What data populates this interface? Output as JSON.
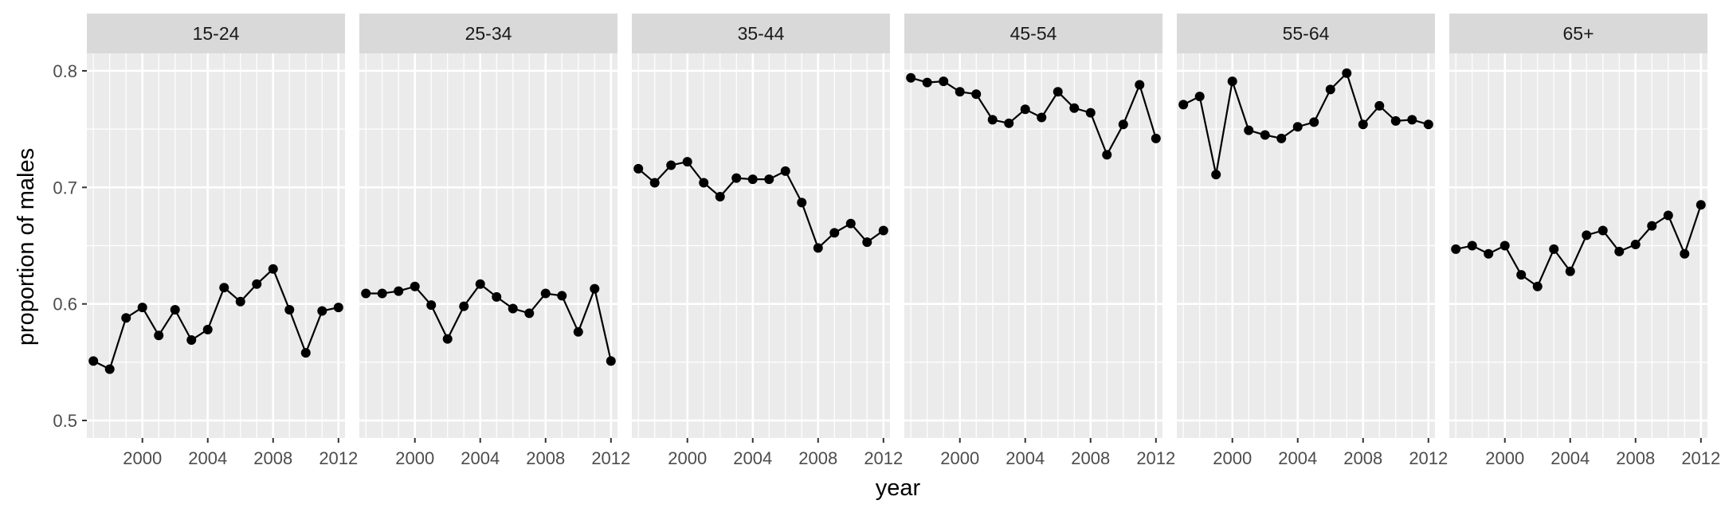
{
  "chart_data": {
    "type": "line",
    "xlabel": "year",
    "ylabel": "proportion of males",
    "ylim": [
      0.485,
      0.815
    ],
    "xlim": [
      1996.6,
      2012.4
    ],
    "x_ticks": [
      2000,
      2004,
      2008,
      2012
    ],
    "y_ticks": [
      0.5,
      0.6,
      0.7,
      0.8
    ],
    "y_tick_labels": [
      "0.5",
      "0.6",
      "0.7",
      "0.8"
    ],
    "x": [
      1997,
      1998,
      1999,
      2000,
      2001,
      2002,
      2003,
      2004,
      2005,
      2006,
      2007,
      2008,
      2009,
      2010,
      2011,
      2012
    ],
    "grid": true,
    "legend": "none",
    "colors": {
      "panel_bg": "#ebebeb",
      "strip_bg": "#d9d9d9",
      "grid": "#ffffff",
      "line": "#000000"
    },
    "panels": [
      {
        "name": "15-24",
        "values": [
          0.551,
          0.544,
          0.588,
          0.597,
          0.573,
          0.595,
          0.569,
          0.578,
          0.614,
          0.602,
          0.617,
          0.63,
          0.595,
          0.558,
          0.594,
          0.597
        ]
      },
      {
        "name": "25-34",
        "values": [
          0.609,
          0.609,
          0.611,
          0.615,
          0.599,
          0.57,
          0.598,
          0.617,
          0.606,
          0.596,
          0.592,
          0.609,
          0.607,
          0.576,
          0.613,
          0.551
        ]
      },
      {
        "name": "35-44",
        "values": [
          0.716,
          0.704,
          0.719,
          0.722,
          0.704,
          0.692,
          0.708,
          0.707,
          0.707,
          0.714,
          0.687,
          0.648,
          0.661,
          0.669,
          0.653,
          0.663
        ]
      },
      {
        "name": "45-54",
        "values": [
          0.794,
          0.79,
          0.791,
          0.782,
          0.78,
          0.758,
          0.755,
          0.767,
          0.76,
          0.782,
          0.768,
          0.764,
          0.728,
          0.754,
          0.788,
          0.742
        ]
      },
      {
        "name": "55-64",
        "values": [
          0.771,
          0.778,
          0.711,
          0.791,
          0.749,
          0.745,
          0.742,
          0.752,
          0.756,
          0.784,
          0.798,
          0.754,
          0.77,
          0.757,
          0.758,
          0.754
        ]
      },
      {
        "name": "65+",
        "values": [
          0.647,
          0.65,
          0.643,
          0.65,
          0.625,
          0.615,
          0.647,
          0.628,
          0.659,
          0.663,
          0.645,
          0.651,
          0.667,
          0.676,
          0.643,
          0.685
        ]
      }
    ]
  }
}
